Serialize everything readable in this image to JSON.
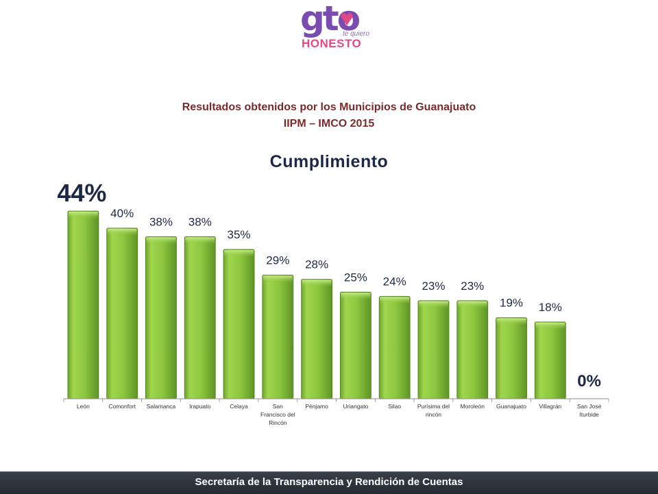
{
  "logo": {
    "brand": "gto",
    "tagline": "te quiero",
    "name": "HONESTO",
    "colors": {
      "purple": "#7a4bb0",
      "pink": "#e24a83"
    }
  },
  "title_line1": "Resultados obtenidos por los Municipios de Guanajuato",
  "title_line2": "IIPM – IMCO 2015",
  "footer": {
    "text": "Secretaría de la Transparencia y Rendición de Cuentas"
  },
  "chart_data": {
    "type": "bar",
    "title": "Cumplimiento",
    "categories": [
      "León",
      "Comonfort",
      "Salamanca",
      "Irapuato",
      "Celaya",
      "San Francisco del Rincón",
      "Pénjamo",
      "Uriangato",
      "Silao",
      "Purísima del rincón",
      "Moroleón",
      "Guanajuato",
      "Villagrán",
      "San José Iturbide"
    ],
    "category_lines": [
      [
        "León"
      ],
      [
        "Comonfort"
      ],
      [
        "Salamanca"
      ],
      [
        "Irapuato"
      ],
      [
        "Celaya"
      ],
      [
        "San",
        "Francisco del",
        "Rincón"
      ],
      [
        "Pénjamo"
      ],
      [
        "Uriangato"
      ],
      [
        "Silao"
      ],
      [
        "Purísima del",
        "rincón"
      ],
      [
        "Moroleón"
      ],
      [
        "Guanajuato"
      ],
      [
        "Villagrán"
      ],
      [
        "San José",
        "Iturbide"
      ]
    ],
    "values": [
      44,
      40,
      38,
      38,
      35,
      29,
      28,
      25,
      24,
      23,
      23,
      19,
      18,
      0
    ],
    "data_labels": [
      "44%",
      "40%",
      "38%",
      "38%",
      "35%",
      "29%",
      "28%",
      "25%",
      "24%",
      "23%",
      "23%",
      "19%",
      "18%",
      "0%"
    ],
    "emphasized_labels": [
      0,
      13
    ],
    "ylim": [
      0,
      44
    ],
    "grid": false,
    "legend": "none",
    "bar_color": "#8cc63f"
  }
}
